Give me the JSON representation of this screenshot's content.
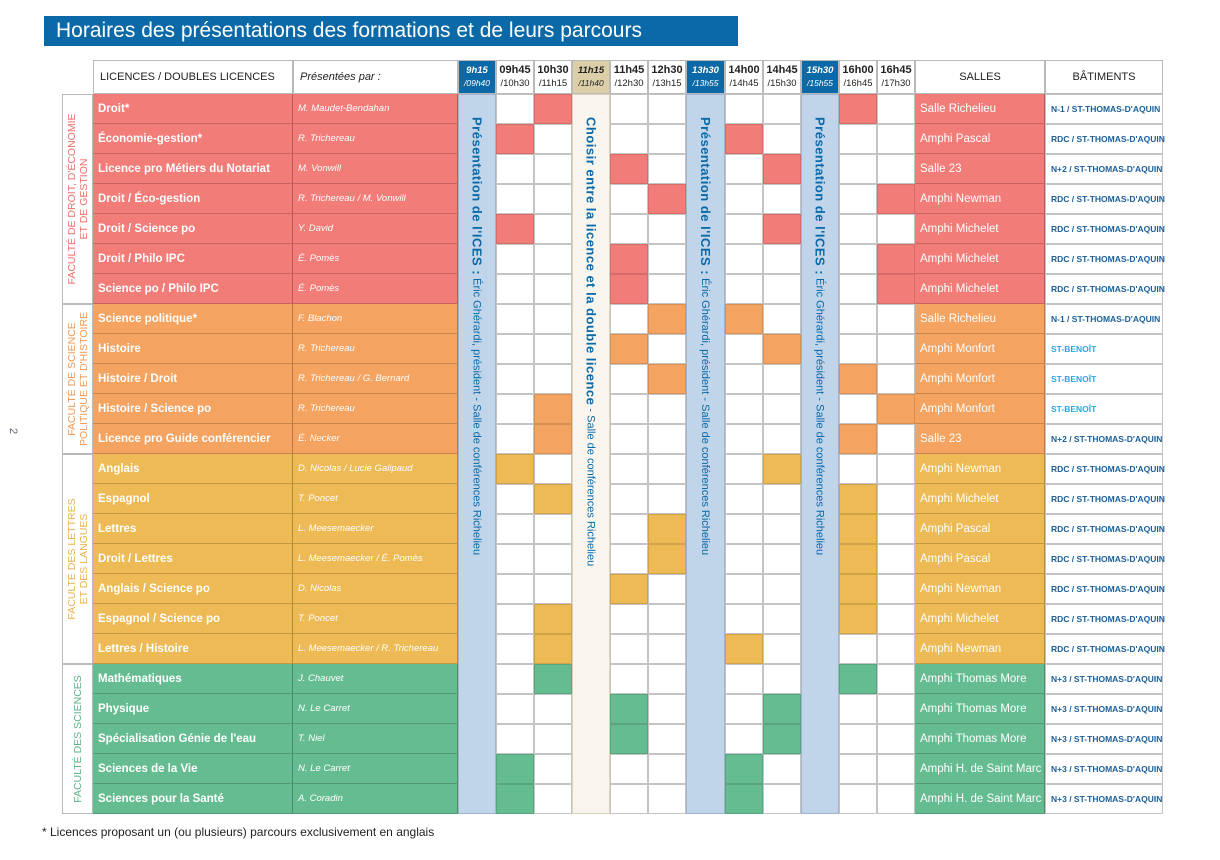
{
  "title": "Horaires des présentations des formations et de leurs parcours",
  "page_number": "2",
  "footnote": "* Licences proposant un (ou plusieurs) parcours exclusivement en anglais",
  "headers": {
    "licences": "LICENCES / DOUBLES LICENCES",
    "presenter": "Présentées par :",
    "salles": "SALLES",
    "batiments": "BÂTIMENTS"
  },
  "colors": {
    "title_bg": "#0a69a6",
    "band_blue": "#c0d4ea",
    "band_blue_header": "#0a69a6",
    "band_beige": "#f8f5ee",
    "band_beige_header": "#dccfa8",
    "building_text": "#1a5e9a",
    "building_st_benoit": "#29a8e0"
  },
  "timeslots": [
    {
      "start": "9h15",
      "end": "/09h40",
      "type": "ices"
    },
    {
      "start": "09h45",
      "end": "/10h30",
      "type": "regular"
    },
    {
      "start": "10h30",
      "end": "/11h15",
      "type": "regular"
    },
    {
      "start": "11h15",
      "end": "/11h40",
      "type": "choisir"
    },
    {
      "start": "11h45",
      "end": "/12h30",
      "type": "regular"
    },
    {
      "start": "12h30",
      "end": "/13h15",
      "type": "regular"
    },
    {
      "start": "13h30",
      "end": "/13h55",
      "type": "ices"
    },
    {
      "start": "14h00",
      "end": "/14h45",
      "type": "regular"
    },
    {
      "start": "14h45",
      "end": "/15h30",
      "type": "regular"
    },
    {
      "start": "15h30",
      "end": "/15h55",
      "type": "ices"
    },
    {
      "start": "16h00",
      "end": "/16h45",
      "type": "regular"
    },
    {
      "start": "16h45",
      "end": "/17h30",
      "type": "regular"
    }
  ],
  "bands": {
    "ices": {
      "bold": "Présentation de l'ICES :",
      "text": " Éric Ghérardi, président  -  Salle de conférences Richelieu"
    },
    "choisir": {
      "bold": "Choisir entre la licence et la double licence",
      "text": "  -  Salle de conférences Richelieu"
    }
  },
  "faculties": [
    {
      "name": "FACULTÉ DE DROIT, D'ÉCONOMIE\nET DE GESTION",
      "color": "#f27c78",
      "label_color": "#ee6e6a",
      "rows": 7
    },
    {
      "name": "FACULTÉ DE SCIENCE\nPOLITIQUE ET D'HISTOIRE",
      "color": "#f5a360",
      "label_color": "#f29a55",
      "rows": 5
    },
    {
      "name": "FACULTÉ DES LETTRES\nET DES LANGUES",
      "color": "#edba55",
      "label_color": "#e9b34a",
      "rows": 7
    },
    {
      "name": "FACULTÉ DES SCIENCES",
      "color": "#66bc91",
      "label_color": "#5bb487",
      "rows": 5
    }
  ],
  "rows": [
    {
      "name": "Droit*",
      "presenter": "M. Maudet-Bendahan",
      "salle": "Salle Richelieu",
      "batiment": "N-1 / ST-THOMAS-D'AQUIN",
      "slots": [
        "10h30",
        "16h00"
      ]
    },
    {
      "name": "Économie-gestion*",
      "presenter": "R. Trichereau",
      "salle": "Amphi Pascal",
      "batiment": "RDC / ST-THOMAS-D'AQUIN",
      "slots": [
        "09h45",
        "14h00"
      ]
    },
    {
      "name": "Licence pro Métiers du Notariat",
      "presenter": "M. Vonwill",
      "salle": "Salle 23",
      "batiment": "N+2 / ST-THOMAS-D'AQUIN",
      "slots": [
        "11h45",
        "14h45"
      ]
    },
    {
      "name": "Droit / Éco-gestion",
      "presenter": "R. Trichereau / M. Vonwill",
      "salle": "Amphi Newman",
      "batiment": "RDC / ST-THOMAS-D'AQUIN",
      "slots": [
        "12h30",
        "16h45"
      ]
    },
    {
      "name": "Droit / Science po",
      "presenter": "Y. David",
      "salle": "Amphi Michelet",
      "batiment": "RDC / ST-THOMAS-D'AQUIN",
      "slots": [
        "09h45",
        "14h45"
      ]
    },
    {
      "name": "Droit / Philo IPC",
      "presenter": "É. Pomès",
      "salle": "Amphi Michelet",
      "batiment": "RDC / ST-THOMAS-D'AQUIN",
      "slots": [
        "11h45",
        "16h45"
      ]
    },
    {
      "name": "Science po / Philo IPC",
      "presenter": "É. Pomès",
      "salle": "Amphi Michelet",
      "batiment": "RDC / ST-THOMAS-D'AQUIN",
      "slots": [
        "11h45",
        "16h45"
      ]
    },
    {
      "name": "Science politique*",
      "presenter": "F. Blachon",
      "salle": "Salle Richelieu",
      "batiment": "N-1 / ST-THOMAS-D'AQUIN",
      "slots": [
        "12h30",
        "14h00"
      ]
    },
    {
      "name": "Histoire",
      "presenter": "R. Trichereau",
      "salle": "Amphi Monfort",
      "batiment": "ST-BENOÎT",
      "slots": [
        "11h45",
        "14h45"
      ]
    },
    {
      "name": "Histoire / Droit",
      "presenter": "R. Trichereau / G. Bernard",
      "salle": "Amphi Monfort",
      "batiment": "ST-BENOÎT",
      "slots": [
        "12h30",
        "16h00"
      ]
    },
    {
      "name": "Histoire / Science po",
      "presenter": "R. Trichereau",
      "salle": "Amphi Monfort",
      "batiment": "ST-BENOÎT",
      "slots": [
        "10h30",
        "16h45"
      ]
    },
    {
      "name": "Licence pro Guide conférencier",
      "presenter": "É. Necker",
      "salle": "Salle 23",
      "batiment": "N+2 / ST-THOMAS-D'AQUIN",
      "slots": [
        "10h30",
        "16h00"
      ]
    },
    {
      "name": "Anglais",
      "presenter": "D. Nicolas / Lucie Galipaud",
      "salle": "Amphi Newman",
      "batiment": "RDC / ST-THOMAS-D'AQUIN",
      "slots": [
        "09h45",
        "14h45"
      ]
    },
    {
      "name": "Espagnol",
      "presenter": "T. Poncet",
      "salle": "Amphi Michelet",
      "batiment": "RDC / ST-THOMAS-D'AQUIN",
      "slots": [
        "10h30",
        "16h00"
      ]
    },
    {
      "name": "Lettres",
      "presenter": "L. Meesemaecker",
      "salle": "Amphi Pascal",
      "batiment": "RDC / ST-THOMAS-D'AQUIN",
      "slots": [
        "12h30",
        "16h00"
      ]
    },
    {
      "name": "Droit / Lettres",
      "presenter": "L. Meesemaecker / É. Pomès",
      "salle": "Amphi Pascal",
      "batiment": "RDC / ST-THOMAS-D'AQUIN",
      "slots": [
        "12h30",
        "16h00"
      ]
    },
    {
      "name": "Anglais / Science po",
      "presenter": "D. Nicolas",
      "salle": "Amphi Newman",
      "batiment": "RDC / ST-THOMAS-D'AQUIN",
      "slots": [
        "11h45",
        "16h00"
      ]
    },
    {
      "name": "Espagnol / Science po",
      "presenter": "T. Poncet",
      "salle": "Amphi Michelet",
      "batiment": "RDC / ST-THOMAS-D'AQUIN",
      "slots": [
        "10h30",
        "16h00"
      ]
    },
    {
      "name": "Lettres / Histoire",
      "presenter": "L. Meesemaecker / R. Trichereau",
      "salle": "Amphi Newman",
      "batiment": "RDC / ST-THOMAS-D'AQUIN",
      "slots": [
        "10h30",
        "14h00"
      ]
    },
    {
      "name": "Mathématiques",
      "presenter": "J. Chauvet",
      "salle": "Amphi Thomas More",
      "batiment": "N+3 / ST-THOMAS-D'AQUIN",
      "slots": [
        "10h30",
        "16h00"
      ]
    },
    {
      "name": "Physique",
      "presenter": "N. Le Carret",
      "salle": "Amphi Thomas More",
      "batiment": "N+3 / ST-THOMAS-D'AQUIN",
      "slots": [
        "11h45",
        "14h45"
      ]
    },
    {
      "name": "Spécialisation Génie de l'eau",
      "presenter": "T. Niel",
      "salle": "Amphi Thomas More",
      "batiment": "N+3 / ST-THOMAS-D'AQUIN",
      "slots": [
        "11h45",
        "14h45"
      ]
    },
    {
      "name": "Sciences de la Vie",
      "presenter": "N. Le Carret",
      "salle": "Amphi H. de Saint Marc",
      "batiment": "N+3 / ST-THOMAS-D'AQUIN",
      "slots": [
        "09h45",
        "14h00"
      ]
    },
    {
      "name": "Sciences pour la Santé",
      "presenter": "A. Coradin",
      "salle": "Amphi H. de Saint Marc",
      "batiment": "N+3 / ST-THOMAS-D'AQUIN",
      "slots": [
        "09h45",
        "14h00"
      ]
    }
  ]
}
